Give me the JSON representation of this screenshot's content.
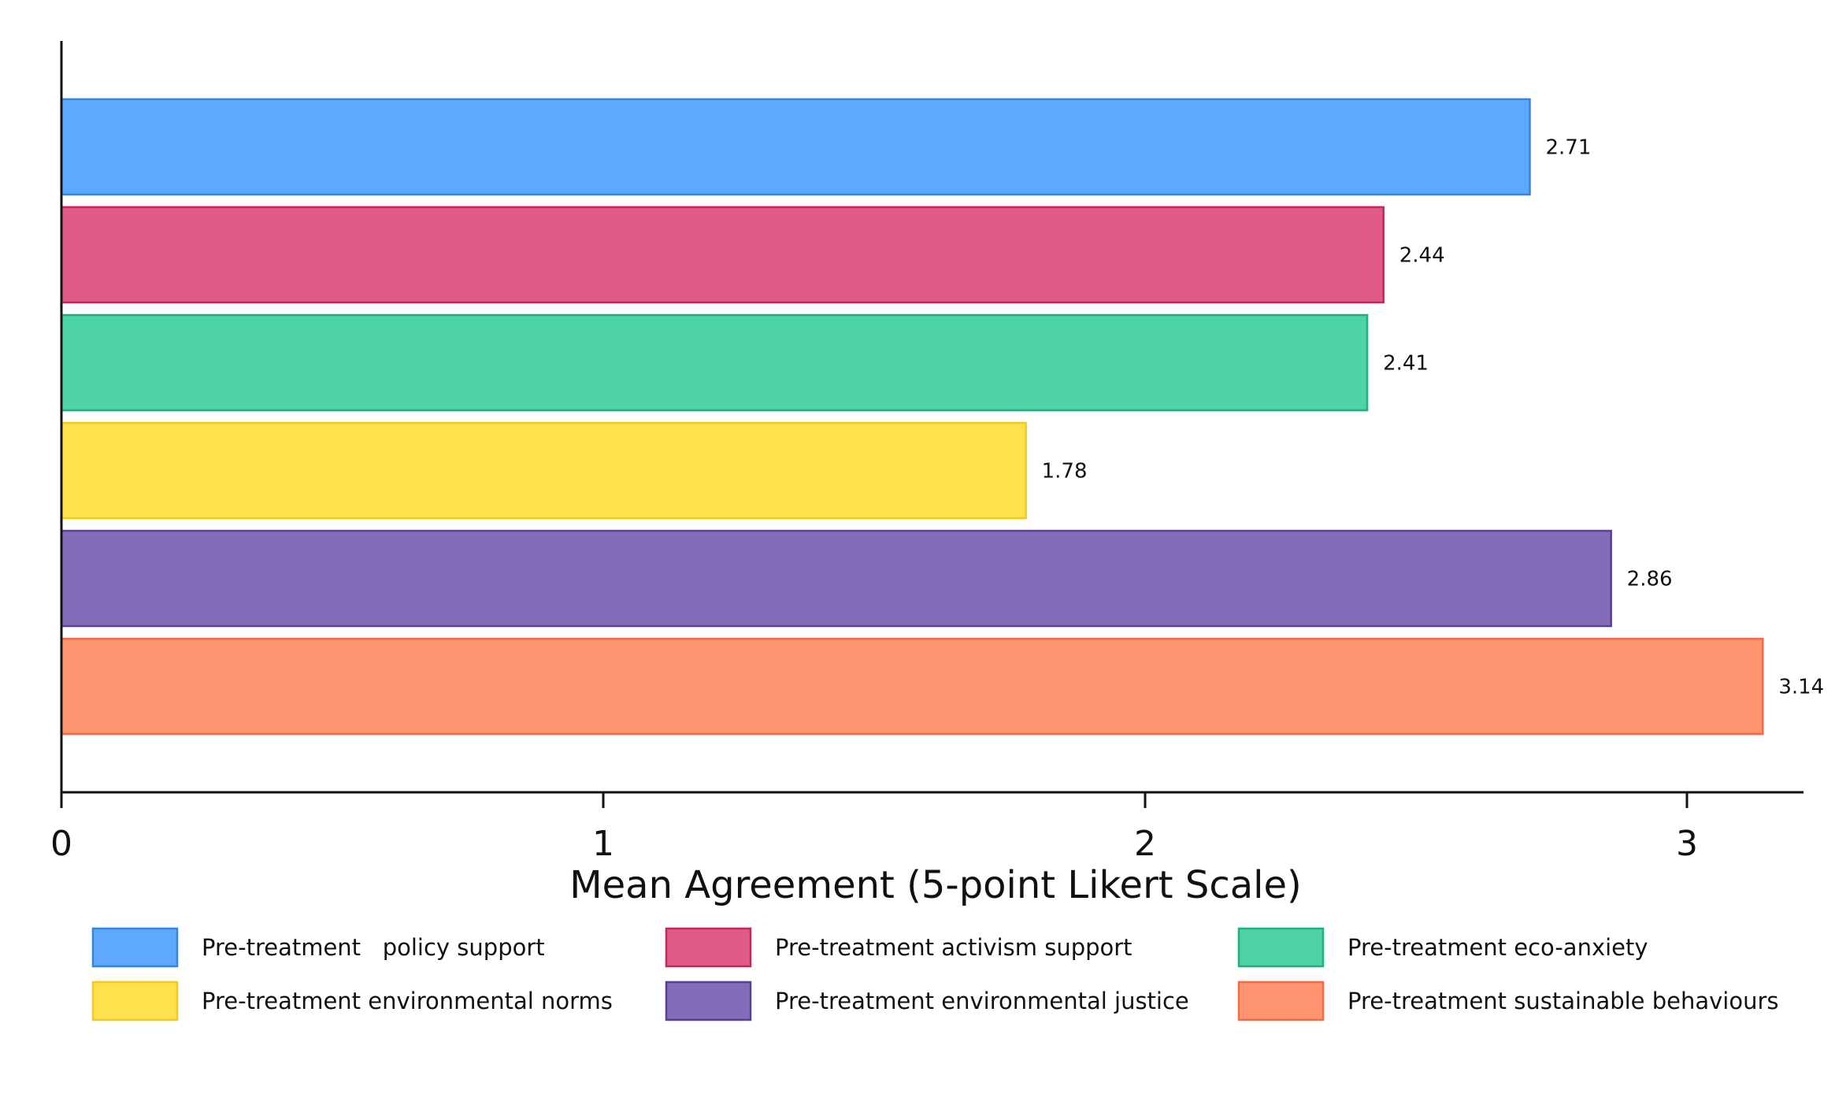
{
  "chart_data": {
    "type": "bar",
    "orientation": "horizontal",
    "title": "",
    "xlabel": "Mean Agreement (5-point Likert Scale)",
    "ylabel": "",
    "xlim": [
      0,
      3.2
    ],
    "xticks": [
      "0",
      "1",
      "2",
      "3"
    ],
    "grid": false,
    "legend_position": "bottom",
    "series": [
      {
        "name": "Pre-treatment   policy support",
        "value": 2.71,
        "value_label": "2.71",
        "color": "#5fa8ff",
        "edge": "#2f86e8"
      },
      {
        "name": "Pre-treatment activism support",
        "value": 2.44,
        "value_label": "2.44",
        "color": "#e05a8a",
        "edge": "#c8245e"
      },
      {
        "name": "Pre-treatment eco-anxiety",
        "value": 2.41,
        "value_label": "2.41",
        "color": "#4dd3a4",
        "edge": "#1fb07f"
      },
      {
        "name": "Pre-treatment environmental norms",
        "value": 1.78,
        "value_label": "1.78",
        "color": "#ffe04d",
        "edge": "#f2c81a"
      },
      {
        "name": "Pre-treatment environmental justice",
        "value": 2.86,
        "value_label": "2.86",
        "color": "#836cb8",
        "edge": "#5a3f9a"
      },
      {
        "name": "Pre-treatment sustainable behaviours",
        "value": 3.14,
        "value_label": "3.14",
        "color": "#ff9471",
        "edge": "#f26b45"
      }
    ]
  }
}
